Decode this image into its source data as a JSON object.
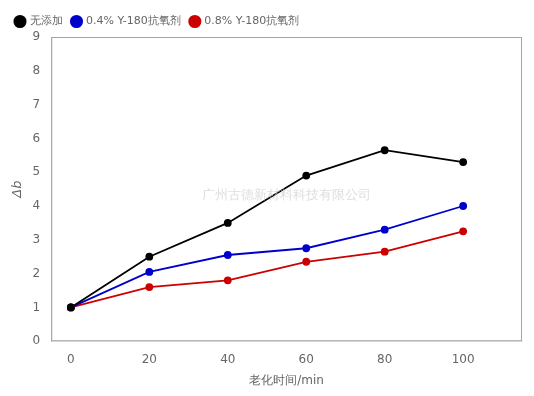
{
  "chart_data": {
    "type": "line",
    "x": [
      0,
      20,
      40,
      60,
      80,
      100
    ],
    "series": [
      {
        "name": "无添加",
        "color": "#000000",
        "values": [
          1.0,
          2.5,
          3.5,
          4.9,
          5.65,
          5.3
        ]
      },
      {
        "name": "0.4% Y-180抗氧剂",
        "color": "#0000cc",
        "values": [
          1.0,
          2.05,
          2.55,
          2.75,
          3.3,
          4.0
        ]
      },
      {
        "name": "0.8% Y-180抗氧剂",
        "color": "#cc0000",
        "values": [
          1.0,
          1.6,
          1.8,
          2.35,
          2.65,
          3.25
        ]
      }
    ],
    "xlabel": "老化时间/min",
    "ylabel": "Δb",
    "xlim": [
      -5,
      115
    ],
    "ylim": [
      0,
      9
    ],
    "xticks": [
      0,
      20,
      40,
      60,
      80,
      100
    ],
    "yticks": [
      0,
      1,
      2,
      3,
      4,
      5,
      6,
      7,
      8,
      9
    ],
    "grid": false,
    "legend": "upper left",
    "marker": "o",
    "annotations": [
      "广州古德新材料科技有限公司"
    ]
  }
}
